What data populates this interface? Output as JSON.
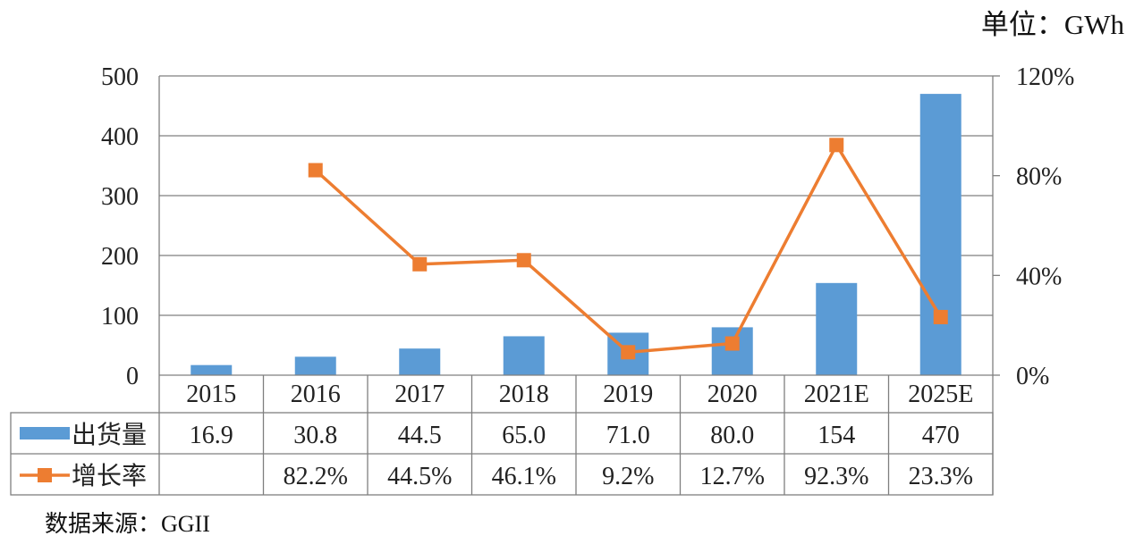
{
  "unit_label": "单位：GWh",
  "source_label": "数据来源：GGII",
  "colors": {
    "bar": "#5b9bd5",
    "line": "#ed7d31",
    "grid": "#7f7f7f"
  },
  "chart_data": {
    "type": "bar",
    "categories": [
      "2015",
      "2016",
      "2017",
      "2018",
      "2019",
      "2020",
      "2021E",
      "2025E"
    ],
    "series": [
      {
        "name": "出货量",
        "axis": "left",
        "type": "bar",
        "values": [
          16.9,
          30.8,
          44.5,
          65.0,
          71.0,
          80.0,
          154,
          470
        ],
        "labels": [
          "16.9",
          "30.8",
          "44.5",
          "65.0",
          "71.0",
          "80.0",
          "154",
          "470"
        ]
      },
      {
        "name": "增长率",
        "axis": "right",
        "type": "line",
        "values": [
          null,
          82.2,
          44.5,
          46.1,
          9.2,
          12.7,
          92.3,
          23.3
        ],
        "labels": [
          "",
          "82.2%",
          "44.5%",
          "46.1%",
          "9.2%",
          "12.7%",
          "92.3%",
          "23.3%"
        ]
      }
    ],
    "y_left": {
      "ylim": [
        0,
        500
      ],
      "ticks": [
        "0",
        "100",
        "200",
        "300",
        "400",
        "500"
      ]
    },
    "y_right": {
      "ylim": [
        0,
        120
      ],
      "ticks": [
        "0%",
        "40%",
        "80%",
        "120%"
      ]
    },
    "grid": true,
    "legend": "data-table"
  }
}
